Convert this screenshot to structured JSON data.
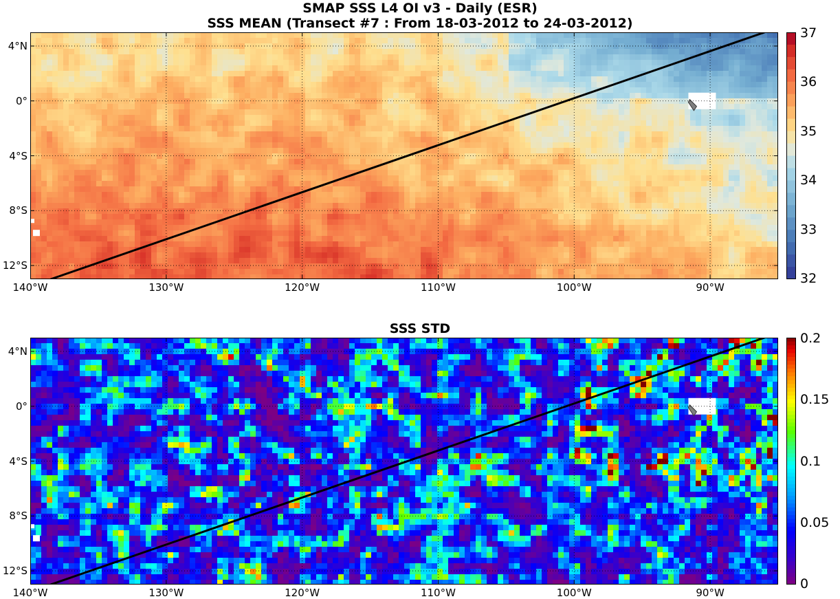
{
  "titles": {
    "line1": "SMAP SSS L4 OI v3 - Daily (ESR)",
    "line2": "SSS MEAN (Transect #7 : From 18-03-2012 to 24-03-2012)",
    "std": "SSS STD"
  },
  "axes": {
    "lon_ticks": [
      "140°W",
      "130°W",
      "120°W",
      "110°W",
      "100°W",
      "90°W"
    ],
    "lon_values": [
      -140,
      -130,
      -120,
      -110,
      -100,
      -90
    ],
    "lat_ticks": [
      "4°N",
      "0°",
      "4°S",
      "8°S",
      "12°S"
    ],
    "lat_values": [
      4,
      0,
      -4,
      -8,
      -12
    ],
    "lon_range": [
      -140,
      -85
    ],
    "lat_range": [
      -13,
      5
    ],
    "grid": "dotted"
  },
  "colors": {
    "transect": "#000000",
    "land": "#ffffff",
    "galapagos_marker": "#808080"
  },
  "transect": {
    "start": {
      "lon": -138.5,
      "lat": -13
    },
    "end": {
      "lon": -86,
      "lat": 5
    }
  },
  "colorbars": {
    "mean": {
      "ticks": [
        "37",
        "36",
        "35",
        "34",
        "33",
        "32"
      ],
      "values": [
        37,
        36,
        35,
        34,
        33,
        32
      ],
      "range": [
        32,
        37
      ],
      "colormap": "diverging red-yellow-blue"
    },
    "std": {
      "ticks": [
        "0.2",
        "0.15",
        "0.1",
        "0.05",
        "0"
      ],
      "values": [
        0.2,
        0.15,
        0.1,
        0.05,
        0
      ],
      "range": [
        0,
        0.2
      ],
      "colormap": "jet"
    }
  }
}
